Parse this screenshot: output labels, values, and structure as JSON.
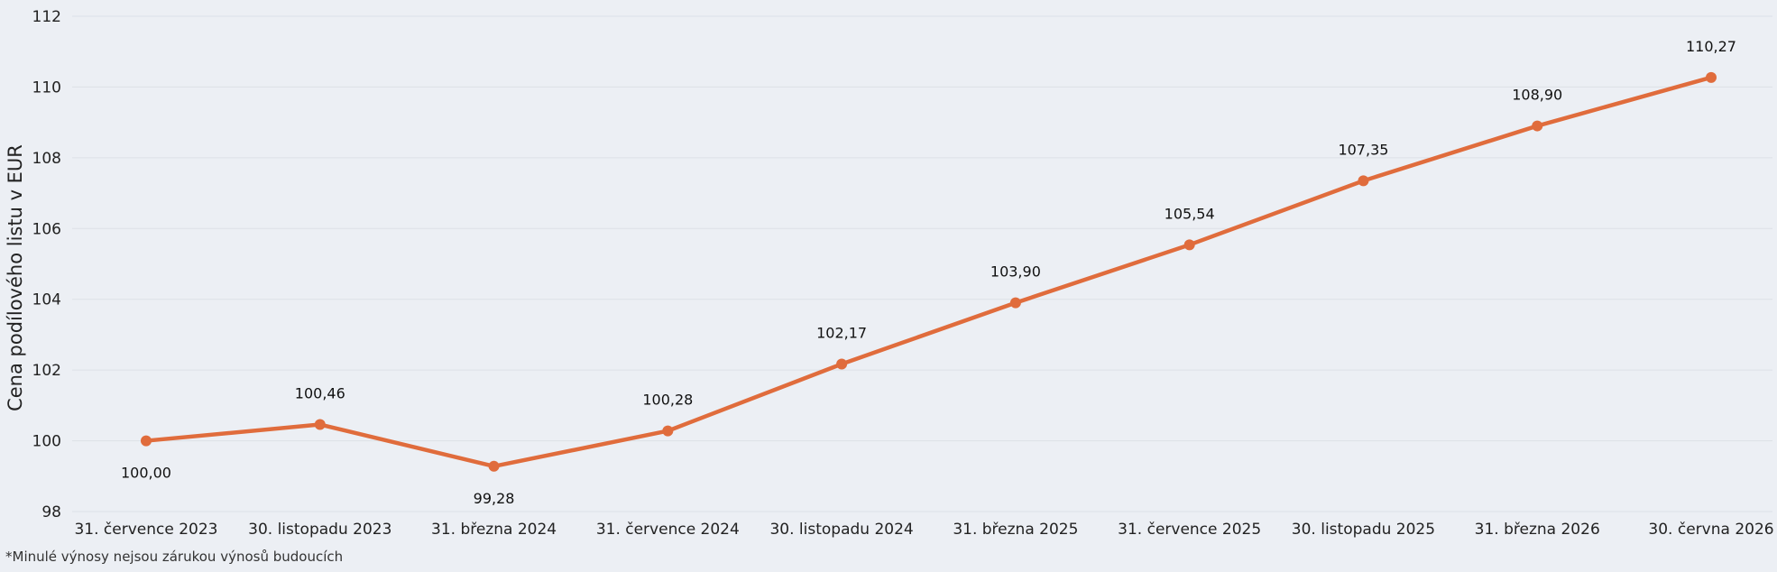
{
  "chart_data": {
    "type": "line",
    "ylabel": "Cena podílového listu v EUR",
    "xlabel": "",
    "ylim": [
      98,
      112
    ],
    "yticks": [
      98,
      100,
      102,
      104,
      106,
      108,
      110,
      112
    ],
    "grid": true,
    "categories": [
      "31. července 2023",
      "30. listopadu 2023",
      "31. března 2024",
      "31. července 2024",
      "30. listopadu 2024",
      "31. března 2025",
      "31. července 2025",
      "30. listopadu 2025",
      "31. března 2026",
      "30. června 2026"
    ],
    "values": [
      100.0,
      100.46,
      99.28,
      100.28,
      102.17,
      103.9,
      105.54,
      107.35,
      108.9,
      110.27
    ],
    "data_labels": [
      "100,00",
      "100,46",
      "99,28",
      "100,28",
      "102,17",
      "103,90",
      "105,54",
      "107,35",
      "108,90",
      "110,27"
    ],
    "line_color": "#e06c3c"
  },
  "footnote": "*Minulé výnosy nejsou zárukou výnosů budoucích"
}
